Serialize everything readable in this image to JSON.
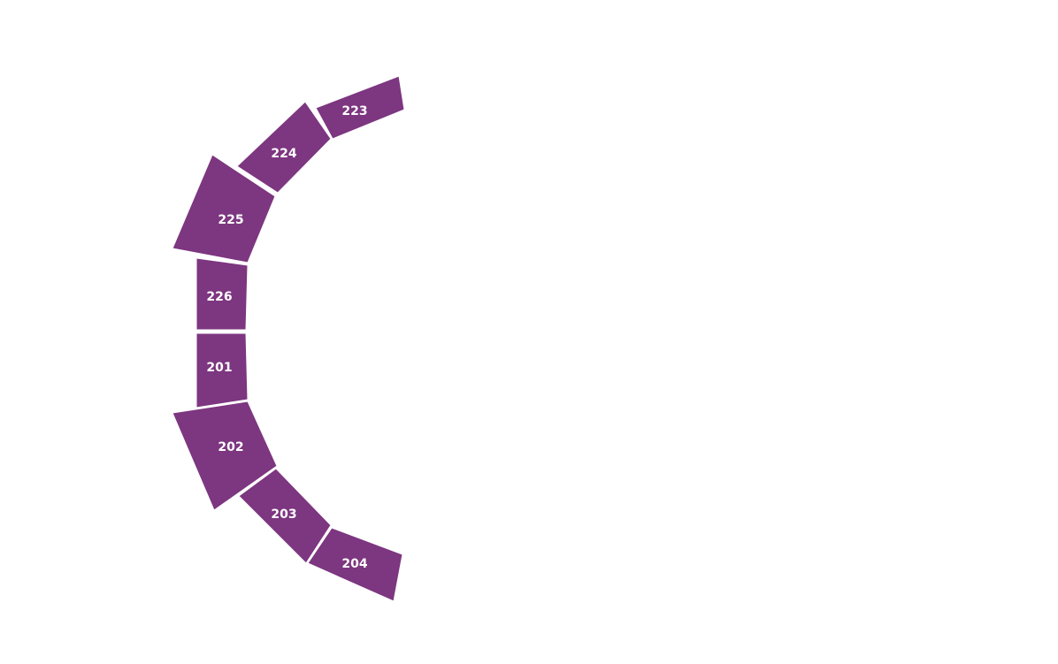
{
  "sections": [
    {
      "label": "223"
    },
    {
      "label": "224"
    },
    {
      "label": "225"
    },
    {
      "label": "226"
    },
    {
      "label": "201"
    },
    {
      "label": "202"
    },
    {
      "label": "203"
    },
    {
      "label": "204"
    }
  ]
}
